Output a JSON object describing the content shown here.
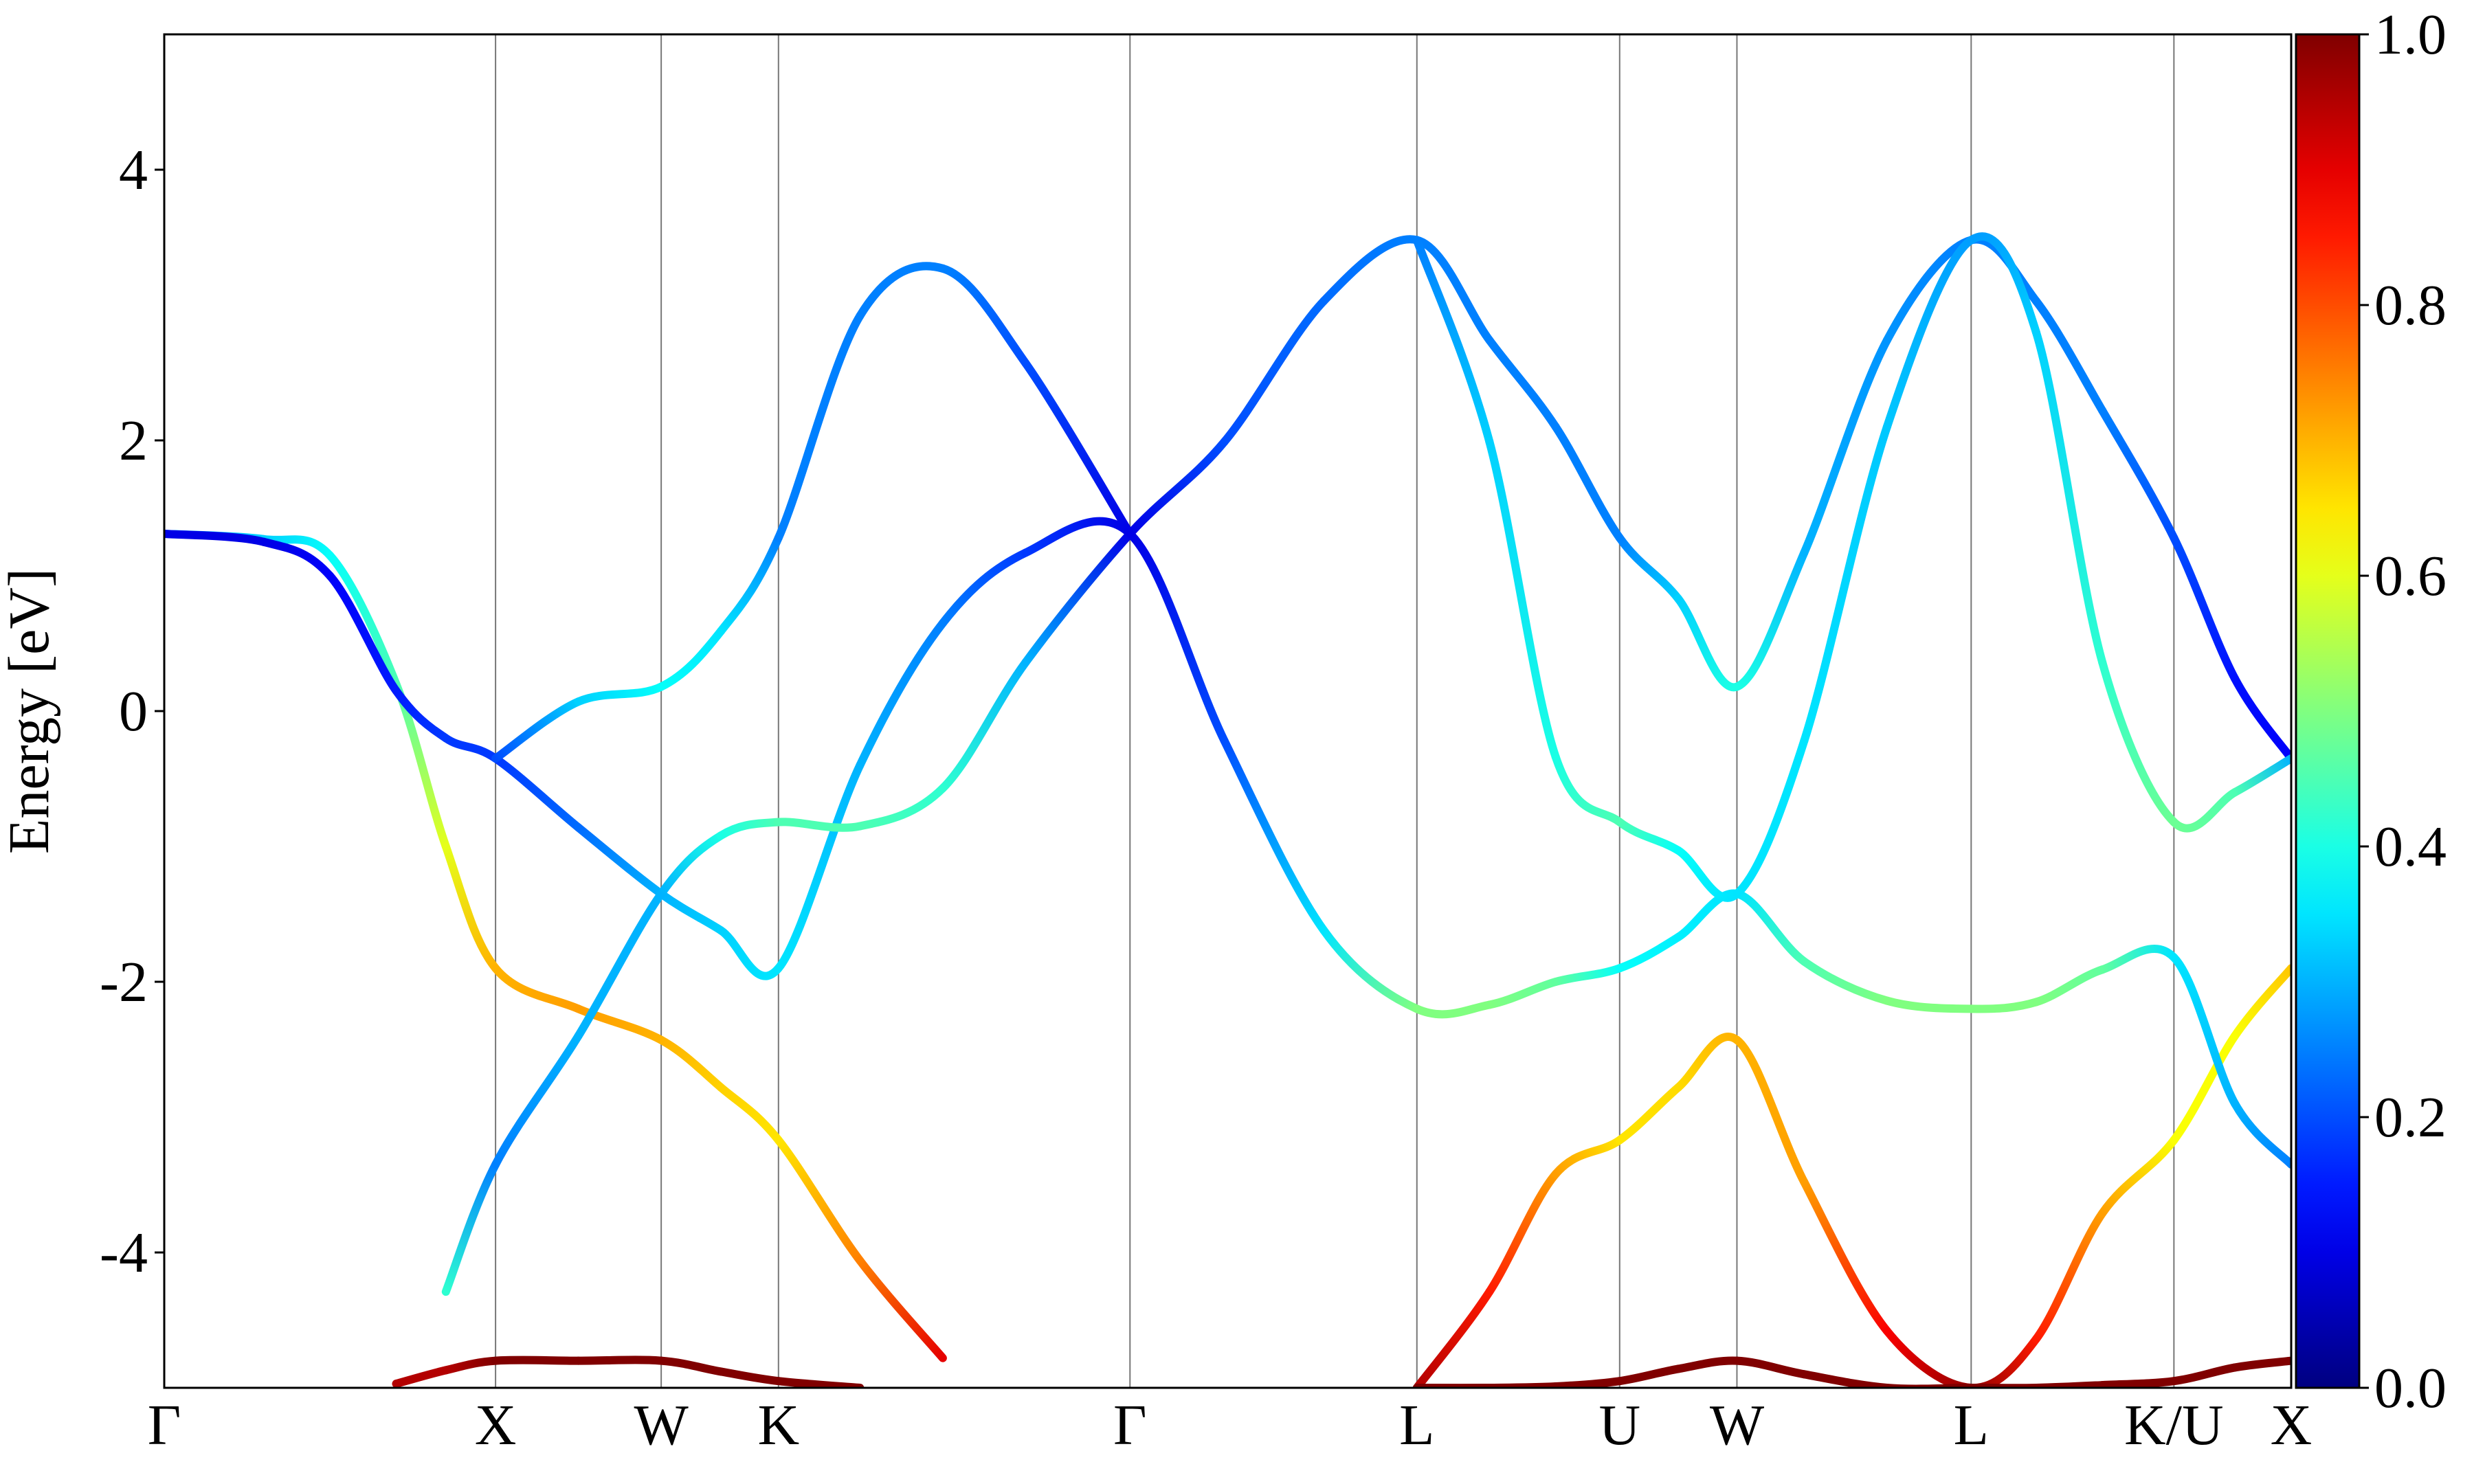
{
  "chart_data": {
    "type": "band-structure",
    "ylabel": "Energy [eV]",
    "x": [
      0,
      0.3,
      0.5,
      0.7,
      0.85,
      1.0,
      1.25,
      1.5,
      1.68,
      1.854,
      2.1,
      2.35,
      2.6,
      2.915,
      3.2,
      3.5,
      3.781,
      4.0,
      4.2,
      4.393,
      4.57,
      4.747,
      4.95,
      5.2,
      5.454,
      5.65,
      5.85,
      6.066,
      6.25,
      6.42
    ],
    "xlim": [
      0,
      6.42
    ],
    "xticks": [
      {
        "value": 0,
        "label": "Γ"
      },
      {
        "value": 1.0,
        "label": "X"
      },
      {
        "value": 1.5,
        "label": "W"
      },
      {
        "value": 1.854,
        "label": "K"
      },
      {
        "value": 2.915,
        "label": "Γ"
      },
      {
        "value": 3.781,
        "label": "L"
      },
      {
        "value": 4.393,
        "label": "U"
      },
      {
        "value": 4.747,
        "label": "W"
      },
      {
        "value": 5.454,
        "label": "L"
      },
      {
        "value": 6.066,
        "label": "K/U"
      },
      {
        "value": 6.42,
        "label": "X"
      }
    ],
    "ylim": [
      -5,
      5
    ],
    "yticks": [
      -4,
      -2,
      0,
      2,
      4
    ],
    "colormap": "jet",
    "clim": [
      0,
      1
    ],
    "colorbar_ticks": [
      {
        "value": 0,
        "label": "0.0"
      },
      {
        "value": 0.2,
        "label": "0.2"
      },
      {
        "value": 0.4,
        "label": "0.4"
      },
      {
        "value": 0.6,
        "label": "0.6"
      },
      {
        "value": 0.8,
        "label": "0.8"
      },
      {
        "value": 1,
        "label": "1.0"
      }
    ],
    "series": [
      {
        "values": [
          1.31,
          1.27,
          1.15,
          0.2,
          -1.0,
          -1.9,
          -2.2,
          -2.43,
          -2.78,
          -3.17,
          -4.06,
          -4.78,
          null,
          null,
          null,
          null,
          -5.0,
          -4.29,
          -3.42,
          -3.17,
          -2.78,
          -2.43,
          -3.48,
          -4.58,
          -5.0,
          -4.64,
          -3.71,
          -3.17,
          -2.4,
          -1.9
        ],
        "weights": [
          0.3,
          0.33,
          0.38,
          0.45,
          0.6,
          0.7,
          0.72,
          0.7,
          0.67,
          0.65,
          0.75,
          0.9,
          null,
          null,
          null,
          null,
          0.95,
          0.85,
          0.72,
          0.65,
          0.66,
          0.7,
          0.72,
          0.88,
          0.98,
          0.85,
          0.72,
          0.62,
          0.62,
          0.68
        ]
      },
      {
        "values": [
          1.31,
          1.25,
          1.0,
          0.15,
          -0.2,
          -0.35,
          -0.86,
          -1.35,
          -1.62,
          -1.9,
          -0.4,
          0.65,
          1.17,
          1.31,
          -0.22,
          -1.62,
          -2.2,
          -2.17,
          -2.0,
          -1.9,
          -1.67,
          -1.35,
          -1.85,
          -2.14,
          -2.2,
          -2.15,
          -1.91,
          -1.82,
          -2.9,
          -3.35
        ],
        "weights": [
          0.1,
          0.1,
          0.12,
          0.15,
          0.18,
          0.18,
          0.23,
          0.3,
          0.33,
          0.35,
          0.3,
          0.25,
          0.18,
          0.1,
          0.2,
          0.35,
          0.5,
          0.5,
          0.47,
          0.38,
          0.36,
          0.35,
          0.45,
          0.5,
          0.5,
          0.5,
          0.47,
          0.35,
          0.3,
          0.25
        ]
      },
      {
        "values": [
          null,
          null,
          null,
          null,
          -4.29,
          -3.35,
          -2.4,
          -1.35,
          -0.92,
          -0.82,
          -0.85,
          -0.57,
          0.36,
          1.31,
          1.99,
          3.03,
          3.48,
          2.74,
          2.1,
          1.28,
          0.83,
          0.18,
          1.17,
          2.74,
          3.48,
          3.03,
          2.22,
          1.28,
          0.24,
          -0.35
        ],
        "weights": [
          null,
          null,
          null,
          null,
          0.42,
          0.25,
          0.3,
          0.3,
          0.4,
          0.45,
          0.45,
          0.42,
          0.3,
          0.1,
          0.2,
          0.23,
          0.25,
          0.25,
          0.25,
          0.25,
          0.33,
          0.4,
          0.3,
          0.27,
          0.25,
          0.25,
          0.25,
          0.2,
          0.14,
          0.12
        ]
      },
      {
        "values": [
          null,
          null,
          null,
          null,
          null,
          -0.35,
          0.07,
          0.18,
          0.59,
          1.28,
          2.92,
          3.27,
          2.57,
          1.31,
          null,
          null,
          3.48,
          1.99,
          -0.34,
          -0.82,
          -1.03,
          -1.35,
          -0.22,
          2.1,
          3.48,
          2.8,
          0.36,
          -0.82,
          -0.6,
          -0.35
        ],
        "weights": [
          null,
          null,
          null,
          null,
          null,
          0.2,
          0.33,
          0.38,
          0.35,
          0.25,
          0.25,
          0.25,
          0.2,
          0.1,
          null,
          null,
          0.25,
          0.33,
          0.4,
          0.45,
          0.38,
          0.35,
          0.35,
          0.32,
          0.28,
          0.33,
          0.42,
          0.48,
          0.45,
          0.3
        ]
      },
      {
        "values": [
          null,
          null,
          null,
          -4.97,
          -4.87,
          -4.8,
          -4.8,
          -4.8,
          -4.88,
          -4.95,
          -5.0,
          null,
          null,
          null,
          null,
          null,
          -5.0,
          -5.0,
          -4.99,
          -4.95,
          -4.86,
          -4.8,
          -4.9,
          -5.0,
          -5.0,
          -5.0,
          -4.98,
          -4.95,
          -4.85,
          -4.8
        ],
        "weights": [
          null,
          null,
          null,
          0.95,
          0.95,
          1,
          1,
          1,
          1,
          1,
          1,
          null,
          null,
          null,
          null,
          null,
          1,
          1,
          1,
          1,
          1,
          1,
          1,
          1,
          1,
          1,
          1,
          1,
          1,
          1
        ]
      }
    ]
  }
}
